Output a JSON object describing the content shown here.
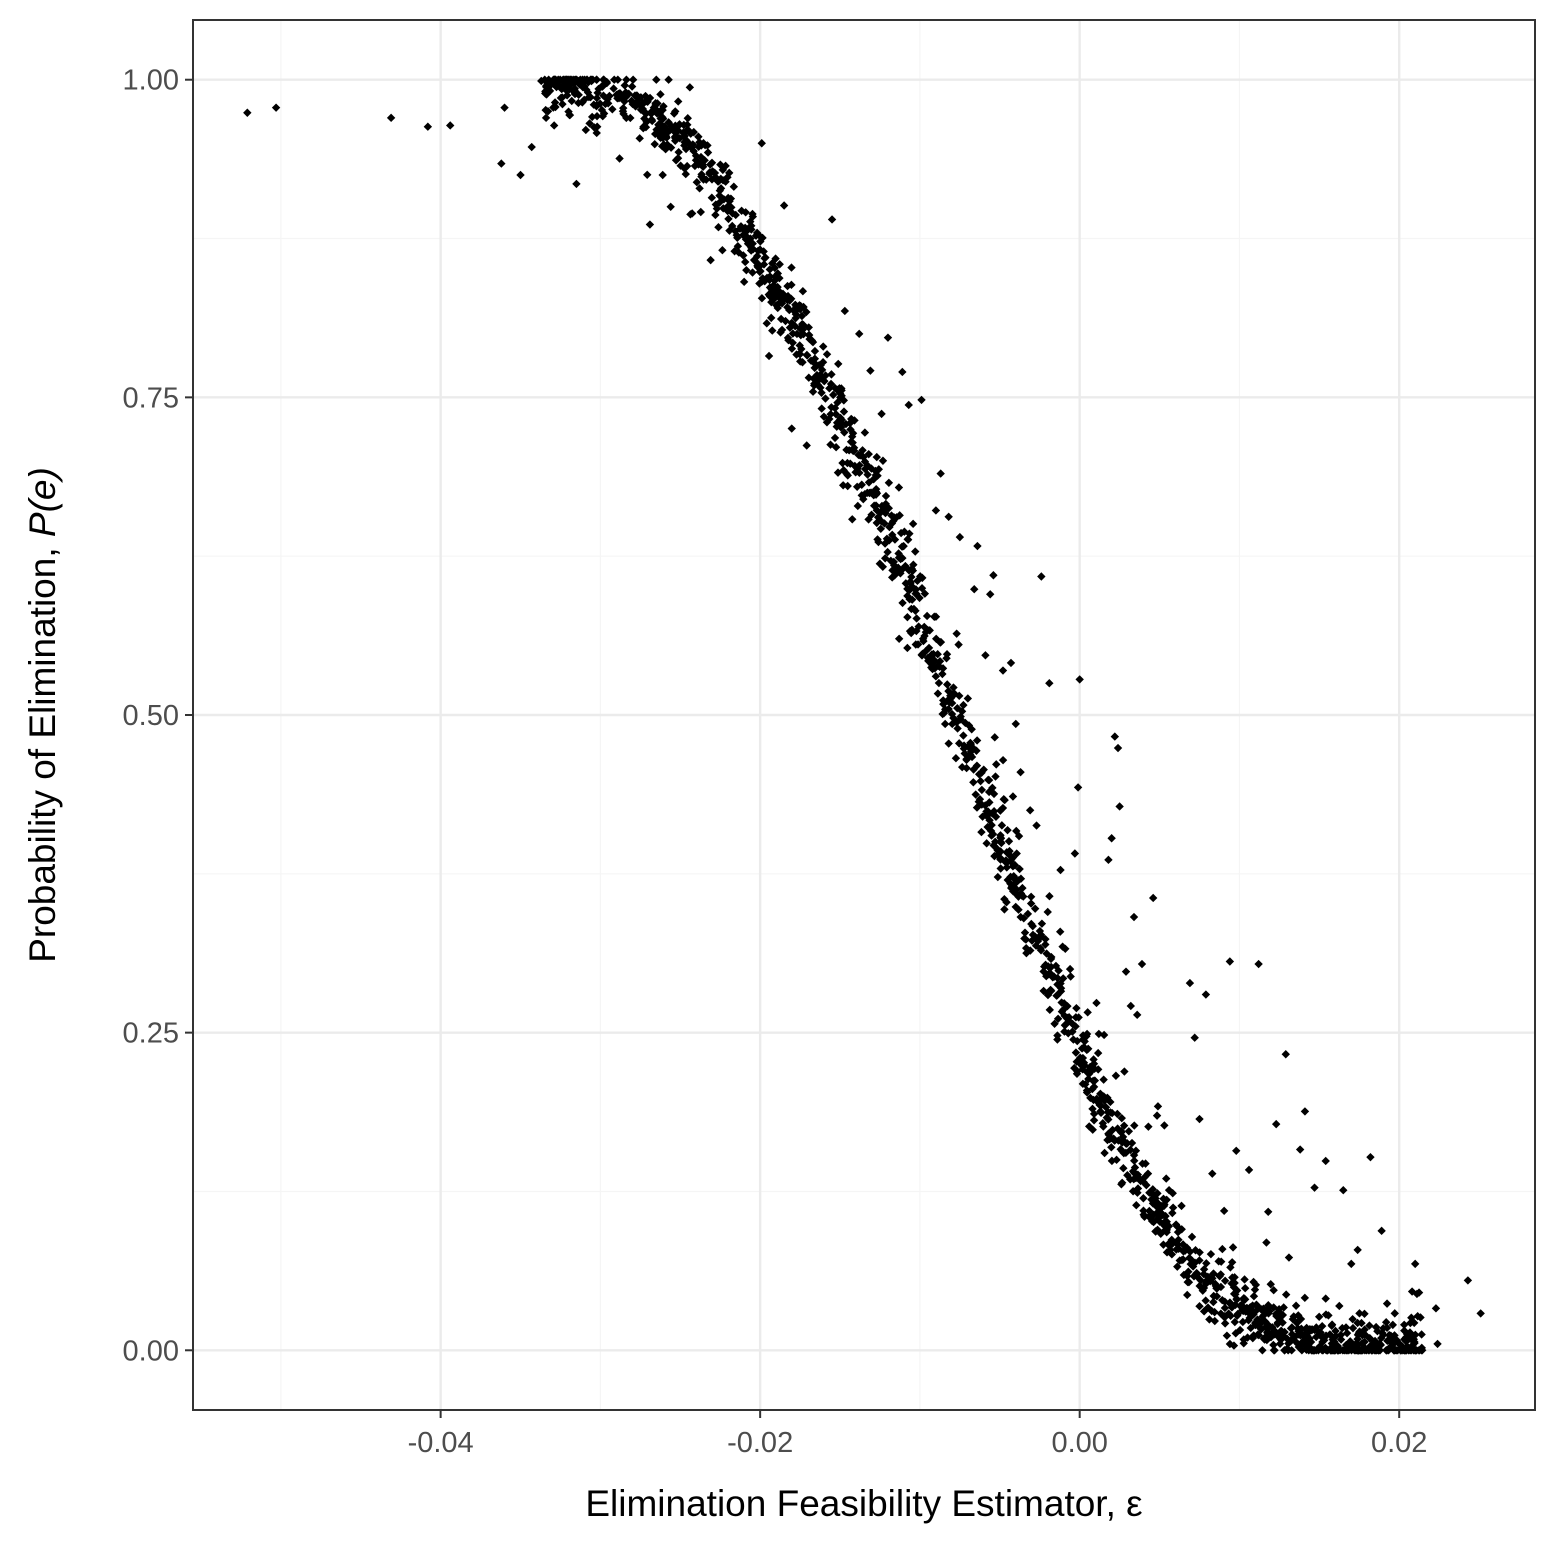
{
  "colors": {
    "panel_background": "#ffffff",
    "panel_border": "#333333",
    "grid_major": "#ebebeb",
    "grid_minor": "#f5f5f5",
    "point": "#000000",
    "tick_label": "#4d4d4d",
    "axis_title": "#000000"
  },
  "chart_data": {
    "type": "scatter",
    "title": "",
    "xlabel": "Elimination Feasibility Estimator, ε",
    "ylabel_prefix": "Probability of Elimination, ",
    "ylabel_math": "P(e)",
    "xlim": [
      -0.0555,
      0.0285
    ],
    "ylim": [
      -0.047,
      1.047
    ],
    "x_ticks": [
      -0.04,
      -0.02,
      0.0,
      0.02
    ],
    "x_tick_labels": [
      "-0.04",
      "-0.02",
      "0.00",
      "0.02"
    ],
    "y_ticks": [
      0.0,
      0.25,
      0.5,
      0.75,
      1.0
    ],
    "y_tick_labels": [
      "0.00",
      "0.25",
      "0.50",
      "0.75",
      "1.00"
    ],
    "x_minor_ticks": [
      -0.05,
      -0.03,
      -0.01,
      0.01
    ],
    "y_minor_ticks": [
      0.125,
      0.375,
      0.625,
      0.875
    ],
    "grid": true,
    "legend": "none",
    "marker": "diamond",
    "series": [
      {
        "points": [
          [
            -0.0521,
            0.974
          ],
          [
            -0.0503,
            0.978
          ],
          [
            -0.0431,
            0.97
          ],
          [
            -0.0408,
            0.963
          ],
          [
            -0.0394,
            0.964
          ],
          [
            -0.0362,
            0.934
          ],
          [
            -0.036,
            0.978
          ],
          [
            -0.035,
            0.925
          ],
          [
            -0.0343,
            0.947
          ],
          [
            -0.0337,
            0.999
          ],
          [
            -0.0334,
            0.97
          ],
          [
            -0.0315,
            0.918
          ],
          [
            -0.0302,
            0.963
          ],
          [
            -0.0288,
            0.938
          ],
          [
            -0.0273,
            0.963
          ],
          [
            -0.0269,
            0.886
          ],
          [
            -0.0261,
            0.925
          ],
          [
            -0.0256,
            0.9
          ],
          [
            -0.0244,
            0.994
          ],
          [
            -0.0231,
            0.858
          ],
          [
            -0.0226,
            0.92
          ],
          [
            -0.0216,
            0.865
          ],
          [
            -0.0199,
            0.95
          ],
          [
            -0.0199,
            0.841
          ],
          [
            -0.0185,
            0.901
          ],
          [
            -0.0175,
            0.784
          ],
          [
            -0.0166,
            0.777
          ],
          [
            -0.016,
            0.763
          ],
          [
            -0.0155,
            0.89
          ],
          [
            -0.0147,
            0.818
          ],
          [
            -0.0146,
            0.69
          ],
          [
            -0.0143,
            0.733
          ],
          [
            -0.0138,
            0.8
          ],
          [
            -0.0131,
            0.771
          ],
          [
            -0.0127,
            0.703
          ],
          [
            -0.0124,
            0.737
          ],
          [
            -0.012,
            0.797
          ],
          [
            -0.0113,
            0.56
          ],
          [
            -0.0111,
            0.77
          ],
          [
            -0.0107,
            0.744
          ],
          [
            -0.0104,
            0.6
          ],
          [
            -0.0099,
            0.748
          ],
          [
            -0.0098,
            0.56
          ],
          [
            -0.0095,
            0.545
          ],
          [
            -0.009,
            0.661
          ],
          [
            -0.0087,
            0.69
          ],
          [
            -0.0082,
            0.656
          ],
          [
            -0.0077,
            0.564
          ],
          [
            -0.0075,
            0.64
          ],
          [
            -0.007,
            0.513
          ],
          [
            -0.0066,
            0.599
          ],
          [
            -0.0064,
            0.633
          ],
          [
            -0.0059,
            0.547
          ],
          [
            -0.0056,
            0.595
          ],
          [
            -0.0054,
            0.61
          ],
          [
            -0.0048,
            0.535
          ],
          [
            -0.0043,
            0.541
          ],
          [
            -0.004,
            0.493
          ],
          [
            -0.0037,
            0.455
          ],
          [
            -0.0035,
            0.34
          ],
          [
            -0.0031,
            0.425
          ],
          [
            -0.0027,
            0.413
          ],
          [
            -0.0024,
            0.609
          ],
          [
            -0.002,
            0.345
          ],
          [
            -0.0019,
            0.525
          ],
          [
            -0.0016,
            0.294
          ],
          [
            -0.0012,
            0.378
          ],
          [
            -0.0009,
            0.316
          ],
          [
            -0.0006,
            0.3
          ],
          [
            -0.0003,
            0.391
          ],
          [
            0.0,
            0.528
          ],
          [
            -0.0001,
            0.443
          ],
          [
            0.0002,
            0.23
          ],
          [
            0.0005,
            0.266
          ],
          [
            0.0009,
            0.181
          ],
          [
            0.0012,
            0.249
          ],
          [
            0.0015,
            0.213
          ],
          [
            0.0018,
            0.386
          ],
          [
            0.002,
            0.403
          ],
          [
            0.0022,
            0.483
          ],
          [
            0.0024,
            0.474
          ],
          [
            0.0025,
            0.428
          ],
          [
            0.0029,
            0.298
          ],
          [
            0.0032,
            0.271
          ],
          [
            0.0034,
            0.341
          ],
          [
            0.0036,
            0.264
          ],
          [
            0.0039,
            0.304
          ],
          [
            0.0043,
            0.176
          ],
          [
            0.0046,
            0.356
          ],
          [
            0.0049,
            0.192
          ],
          [
            0.0053,
            0.177
          ],
          [
            0.0058,
            0.108
          ],
          [
            0.0064,
            0.071
          ],
          [
            0.0069,
            0.289
          ],
          [
            0.0072,
            0.246
          ],
          [
            0.0075,
            0.182
          ],
          [
            0.0079,
            0.28
          ],
          [
            0.0083,
            0.139
          ],
          [
            0.0087,
            0.07
          ],
          [
            0.0094,
            0.306
          ],
          [
            0.0096,
            0.081
          ],
          [
            0.0098,
            0.157
          ],
          [
            0.0106,
            0.142
          ],
          [
            0.0112,
            0.304
          ],
          [
            0.0118,
            0.109
          ],
          [
            0.0123,
            0.178
          ],
          [
            0.0129,
            0.233
          ],
          [
            0.0131,
            0.073
          ],
          [
            0.0138,
            0.158
          ],
          [
            0.0141,
            0.188
          ],
          [
            0.0147,
            0.128
          ],
          [
            0.0154,
            0.149
          ],
          [
            0.0165,
            0.126
          ],
          [
            0.017,
            0.068
          ],
          [
            0.0174,
            0.079
          ],
          [
            0.0182,
            0.152
          ],
          [
            0.0189,
            0.094
          ],
          [
            0.0196,
            0.02
          ],
          [
            0.021,
            0.068
          ],
          [
            0.0223,
            0.033
          ],
          [
            0.0243,
            0.055
          ],
          [
            0.0251,
            0.029
          ],
          [
            0.0224,
            0.005
          ],
          [
            0.0205,
            0.003
          ],
          [
            0.019,
            0.012
          ]
        ],
        "band": {
          "x_start": -0.0335,
          "x_end": 0.0215,
          "n": 1700,
          "curve_knots": [
            [
              -0.034,
              0.998
            ],
            [
              -0.031,
              0.995
            ],
            [
              -0.028,
              0.985
            ],
            [
              -0.025,
              0.958
            ],
            [
              -0.023,
              0.925
            ],
            [
              -0.021,
              0.88
            ],
            [
              -0.019,
              0.835
            ],
            [
              -0.017,
              0.79
            ],
            [
              -0.015,
              0.735
            ],
            [
              -0.013,
              0.68
            ],
            [
              -0.011,
              0.615
            ],
            [
              -0.009,
              0.54
            ],
            [
              -0.007,
              0.47
            ],
            [
              -0.005,
              0.4
            ],
            [
              -0.003,
              0.33
            ],
            [
              -0.001,
              0.265
            ],
            [
              0.001,
              0.2
            ],
            [
              0.003,
              0.15
            ],
            [
              0.005,
              0.105
            ],
            [
              0.007,
              0.068
            ],
            [
              0.009,
              0.04
            ],
            [
              0.011,
              0.022
            ],
            [
              0.013,
              0.01
            ],
            [
              0.015,
              0.004
            ],
            [
              0.017,
              0.002
            ],
            [
              0.019,
              0.001
            ],
            [
              0.022,
              0.0
            ]
          ]
        }
      }
    ]
  }
}
